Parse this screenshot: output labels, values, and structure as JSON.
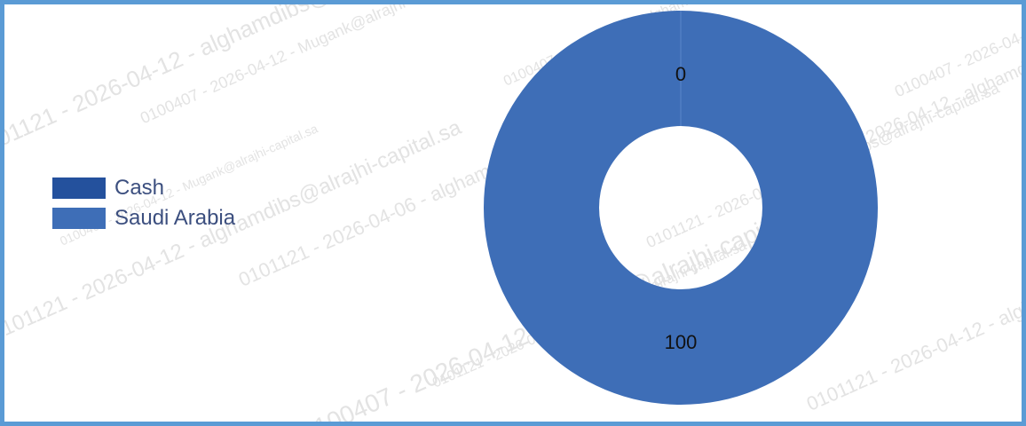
{
  "watermark": {
    "lines": [
      "0101121 - 2026-04-12 - alghamdibs@alrajhi-capital.sa",
      "0100407 - 2026-04-12 - Mugank@alrajhi-capital.sa",
      "0101121 - 2026-04-06 - alghamdibs@alrajhi-capital.sa",
      "0100407 - 2026-04-12 - alghamdibs@alrajhi-capital.sa"
    ]
  },
  "chart_data": {
    "type": "pie",
    "variant": "donut",
    "legend_position": "left",
    "categories": [
      "Cash",
      "Saudi Arabia"
    ],
    "values": [
      0,
      100
    ],
    "data_labels": [
      "0",
      "100"
    ],
    "colors": [
      "#24519d",
      "#3e6eb7"
    ]
  }
}
